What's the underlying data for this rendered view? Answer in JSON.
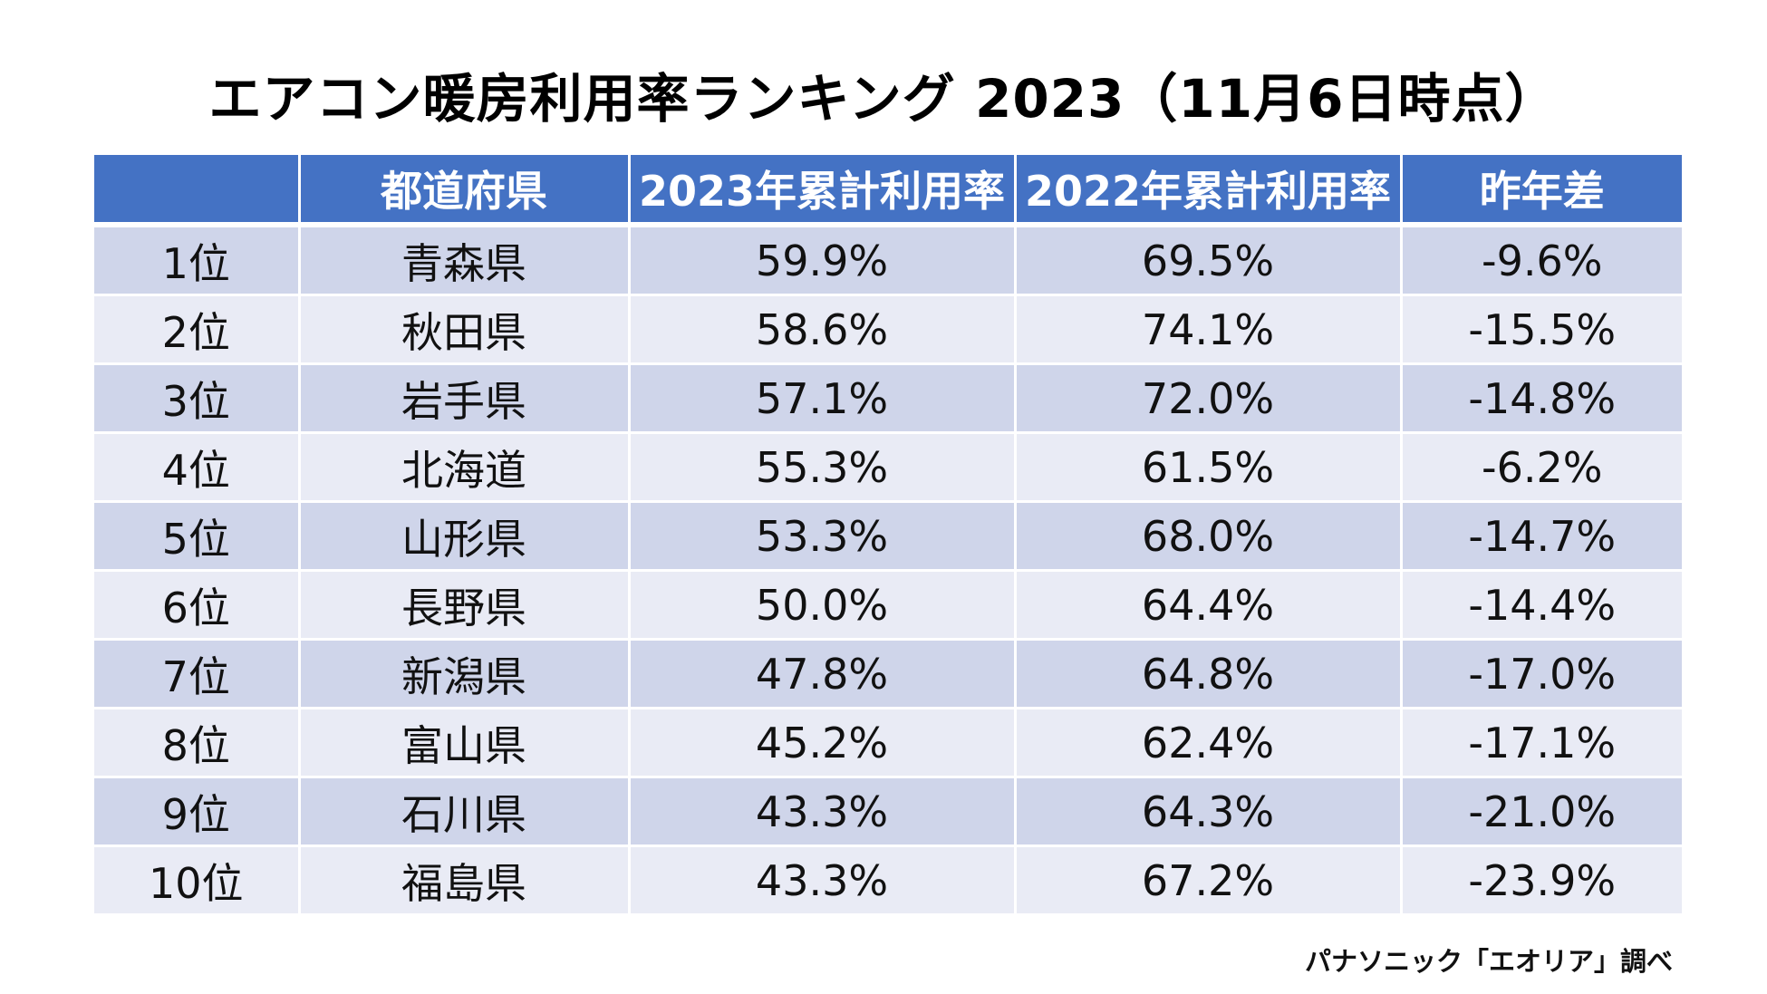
{
  "chart_data": {
    "type": "table",
    "title": "エアコン暖房利用率ランキング 2023（11月6日時点）",
    "columns": [
      "",
      "都道府県",
      "2023年累計利用率",
      "2022年累計利用率",
      "昨年差"
    ],
    "rows": [
      {
        "rank": "1位",
        "prefecture": "青森県",
        "rate_2023": "59.9%",
        "rate_2022": "69.5%",
        "diff": "-9.6%"
      },
      {
        "rank": "2位",
        "prefecture": "秋田県",
        "rate_2023": "58.6%",
        "rate_2022": "74.1%",
        "diff": "-15.5%"
      },
      {
        "rank": "3位",
        "prefecture": "岩手県",
        "rate_2023": "57.1%",
        "rate_2022": "72.0%",
        "diff": "-14.8%"
      },
      {
        "rank": "4位",
        "prefecture": "北海道",
        "rate_2023": "55.3%",
        "rate_2022": "61.5%",
        "diff": "-6.2%"
      },
      {
        "rank": "5位",
        "prefecture": "山形県",
        "rate_2023": "53.3%",
        "rate_2022": "68.0%",
        "diff": "-14.7%"
      },
      {
        "rank": "6位",
        "prefecture": "長野県",
        "rate_2023": "50.0%",
        "rate_2022": "64.4%",
        "diff": "-14.4%"
      },
      {
        "rank": "7位",
        "prefecture": "新潟県",
        "rate_2023": "47.8%",
        "rate_2022": "64.8%",
        "diff": "-17.0%"
      },
      {
        "rank": "8位",
        "prefecture": "富山県",
        "rate_2023": "45.2%",
        "rate_2022": "62.4%",
        "diff": "-17.1%"
      },
      {
        "rank": "9位",
        "prefecture": "石川県",
        "rate_2023": "43.3%",
        "rate_2022": "64.3%",
        "diff": "-21.0%"
      },
      {
        "rank": "10位",
        "prefecture": "福島県",
        "rate_2023": "43.3%",
        "rate_2022": "67.2%",
        "diff": "-23.9%"
      }
    ],
    "source": "パナソニック「エオリア」調べ"
  },
  "colors": {
    "header_bg": "#4472c4",
    "header_text": "#ffffff",
    "row_odd_bg": "#cfd5ea",
    "row_even_bg": "#e9ebf5"
  }
}
